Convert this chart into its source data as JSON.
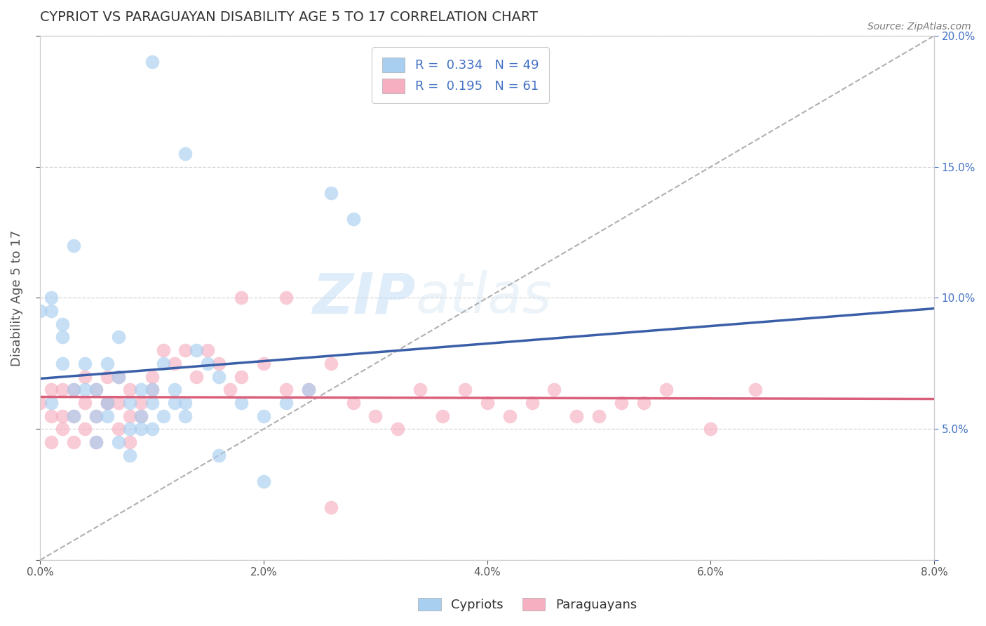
{
  "title": "CYPRIOT VS PARAGUAYAN DISABILITY AGE 5 TO 17 CORRELATION CHART",
  "source": "Source: ZipAtlas.com",
  "ylabel": "Disability Age 5 to 17",
  "xlim": [
    0.0,
    0.08
  ],
  "ylim": [
    0.0,
    0.2
  ],
  "xticks": [
    0.0,
    0.02,
    0.04,
    0.06,
    0.08
  ],
  "yticks": [
    0.0,
    0.05,
    0.1,
    0.15,
    0.2
  ],
  "xtick_labels": [
    "0.0%",
    "2.0%",
    "4.0%",
    "6.0%",
    "8.0%"
  ],
  "right_ytick_labels": [
    "",
    "5.0%",
    "10.0%",
    "15.0%",
    "20.0%"
  ],
  "cypriot_color": "#a8cef0",
  "paraguayan_color": "#f5afc0",
  "trend_cypriot_color": "#3a5fa8",
  "trend_paraguayan_color": "#d95f7a",
  "R_cypriot": 0.334,
  "N_cypriot": 49,
  "R_paraguayan": 0.195,
  "N_paraguayan": 61,
  "cypriot_x": [
    0.001,
    0.002,
    0.003,
    0.004,
    0.005,
    0.005,
    0.006,
    0.006,
    0.007,
    0.007,
    0.008,
    0.008,
    0.009,
    0.009,
    0.01,
    0.01,
    0.011,
    0.012,
    0.013,
    0.014,
    0.0,
    0.001,
    0.001,
    0.002,
    0.002,
    0.003,
    0.003,
    0.004,
    0.005,
    0.006,
    0.007,
    0.008,
    0.009,
    0.01,
    0.011,
    0.012,
    0.013,
    0.015,
    0.016,
    0.018,
    0.02,
    0.022,
    0.024,
    0.026,
    0.028,
    0.01,
    0.013,
    0.016,
    0.02
  ],
  "cypriot_y": [
    0.095,
    0.085,
    0.12,
    0.075,
    0.065,
    0.055,
    0.075,
    0.06,
    0.085,
    0.07,
    0.06,
    0.05,
    0.055,
    0.065,
    0.06,
    0.05,
    0.055,
    0.065,
    0.06,
    0.08,
    0.095,
    0.06,
    0.1,
    0.09,
    0.075,
    0.065,
    0.055,
    0.065,
    0.045,
    0.055,
    0.045,
    0.04,
    0.05,
    0.065,
    0.075,
    0.06,
    0.055,
    0.075,
    0.07,
    0.06,
    0.055,
    0.06,
    0.065,
    0.14,
    0.13,
    0.19,
    0.155,
    0.04,
    0.03
  ],
  "paraguayan_x": [
    0.0,
    0.001,
    0.001,
    0.002,
    0.002,
    0.003,
    0.003,
    0.004,
    0.004,
    0.005,
    0.005,
    0.006,
    0.006,
    0.007,
    0.007,
    0.008,
    0.008,
    0.009,
    0.009,
    0.01,
    0.01,
    0.011,
    0.012,
    0.013,
    0.014,
    0.015,
    0.016,
    0.017,
    0.018,
    0.02,
    0.022,
    0.024,
    0.026,
    0.028,
    0.03,
    0.032,
    0.034,
    0.036,
    0.038,
    0.04,
    0.042,
    0.044,
    0.046,
    0.048,
    0.05,
    0.052,
    0.054,
    0.056,
    0.06,
    0.064,
    0.001,
    0.002,
    0.003,
    0.004,
    0.005,
    0.006,
    0.007,
    0.008,
    0.018,
    0.022,
    0.026
  ],
  "paraguayan_y": [
    0.06,
    0.055,
    0.065,
    0.065,
    0.055,
    0.065,
    0.055,
    0.07,
    0.06,
    0.065,
    0.055,
    0.07,
    0.06,
    0.07,
    0.06,
    0.065,
    0.055,
    0.06,
    0.055,
    0.065,
    0.07,
    0.08,
    0.075,
    0.08,
    0.07,
    0.08,
    0.075,
    0.065,
    0.07,
    0.075,
    0.065,
    0.065,
    0.075,
    0.06,
    0.055,
    0.05,
    0.065,
    0.055,
    0.065,
    0.06,
    0.055,
    0.06,
    0.065,
    0.055,
    0.055,
    0.06,
    0.06,
    0.065,
    0.05,
    0.065,
    0.045,
    0.05,
    0.045,
    0.05,
    0.045,
    0.06,
    0.05,
    0.045,
    0.1,
    0.1,
    0.02
  ],
  "watermark_zip": "ZIP",
  "watermark_atlas": "atlas",
  "background_color": "#ffffff",
  "grid_color": "#d5d5d5",
  "title_color": "#333333",
  "axis_label_color": "#555555",
  "tick_color": "#555555",
  "right_tick_color": "#4472c4",
  "source_color": "#777777"
}
